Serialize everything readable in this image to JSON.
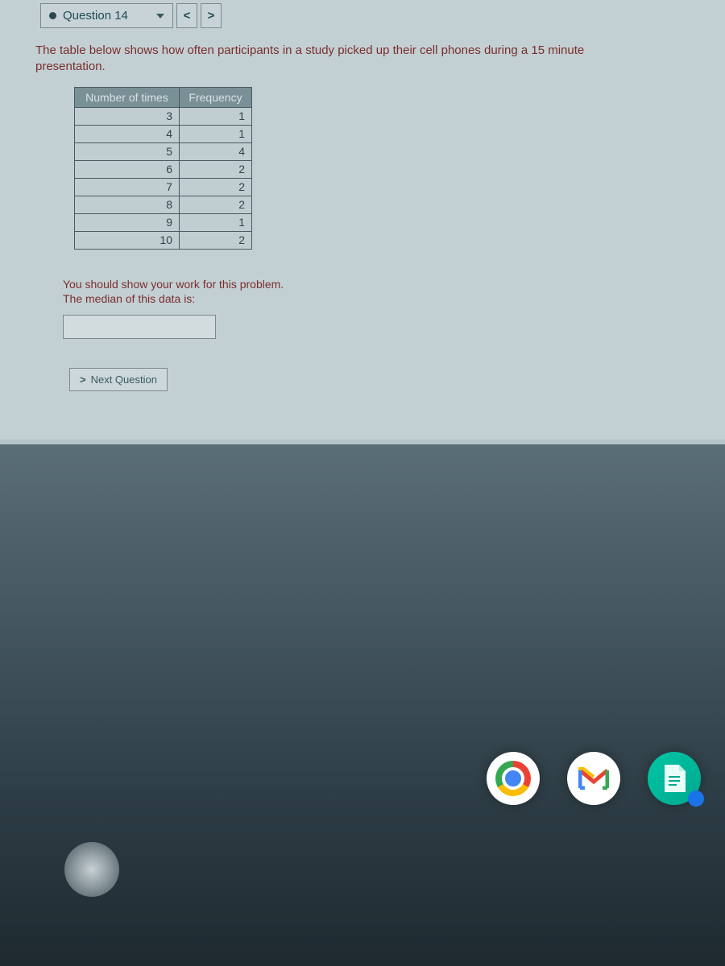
{
  "nav": {
    "current_question_label": "Question 14",
    "prev_symbol": "<",
    "next_symbol": ">"
  },
  "prompt": {
    "line1": "The table below shows how often participants in a study picked up their cell phones during a 15 minute",
    "line2": "presentation."
  },
  "table": {
    "col_number_header": "Number of times",
    "col_freq_header": "Frequency",
    "rows": [
      {
        "n": "3",
        "f": "1"
      },
      {
        "n": "4",
        "f": "1"
      },
      {
        "n": "5",
        "f": "4"
      },
      {
        "n": "6",
        "f": "2"
      },
      {
        "n": "7",
        "f": "2"
      },
      {
        "n": "8",
        "f": "2"
      },
      {
        "n": "9",
        "f": "1"
      },
      {
        "n": "10",
        "f": "2"
      }
    ]
  },
  "post": {
    "work_line": "You should show your work for this problem.",
    "median_line": "The median of this data is:"
  },
  "answer": {
    "value": ""
  },
  "next_button": {
    "caret": ">",
    "label": "Next Question"
  },
  "colors": {
    "panel_bg": "#c3d0d3",
    "text_red": "#7a2e2e",
    "header_bg": "#7a9097",
    "header_fg": "#d8e2e4",
    "cell_border": "#4a5a62",
    "cell_fg": "#30444c",
    "btn_border": "#7a8a90",
    "btn_fg": "#3a5a62"
  },
  "dock": {
    "apps": [
      "chrome",
      "gmail",
      "notes"
    ]
  }
}
